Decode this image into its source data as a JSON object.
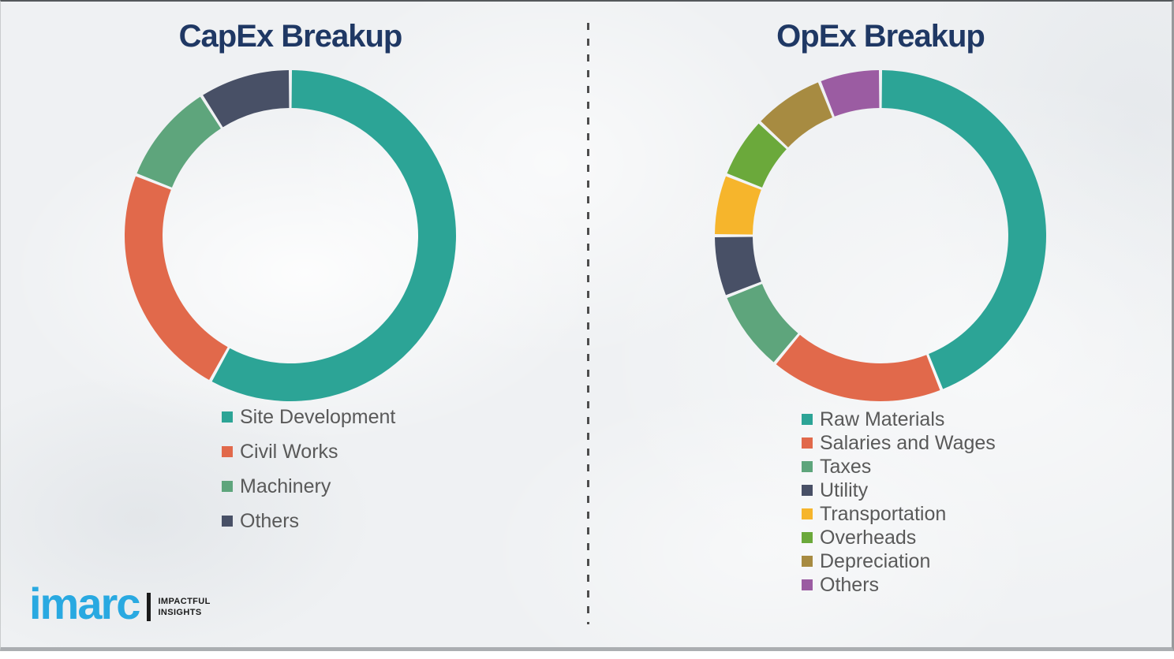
{
  "slide": {
    "background_color": "#eff1f3",
    "divider_style": "vertical-dashed",
    "divider_color": "#4d4d4d"
  },
  "titles": {
    "title_color": "#1f3864"
  },
  "legend_text_color": "#595959",
  "chart_data": [
    {
      "type": "pie",
      "donut": true,
      "title": "CapEx Breakup",
      "start_angle_deg": 0,
      "direction": "clockwise",
      "legend_position": "below-left",
      "note": "no numeric labels shown; segment shares estimated from arc angles",
      "slices": [
        {
          "label": "Site Development",
          "value": 58,
          "color": "#2CA496"
        },
        {
          "label": "Civil Works",
          "value": 23,
          "color": "#E1694B"
        },
        {
          "label": "Machinery",
          "value": 10,
          "color": "#5EA57C"
        },
        {
          "label": "Others",
          "value": 9,
          "color": "#485066"
        }
      ]
    },
    {
      "type": "pie",
      "donut": true,
      "title": "OpEx Breakup",
      "start_angle_deg": 0,
      "direction": "clockwise",
      "legend_position": "below-left",
      "note": "no numeric labels shown; segment shares estimated from arc angles",
      "slices": [
        {
          "label": "Raw Materials",
          "value": 44,
          "color": "#2CA496"
        },
        {
          "label": "Salaries and Wages",
          "value": 17,
          "color": "#E1694B"
        },
        {
          "label": "Taxes",
          "value": 8,
          "color": "#5EA57C"
        },
        {
          "label": "Utility",
          "value": 6,
          "color": "#485066"
        },
        {
          "label": "Transportation",
          "value": 6,
          "color": "#F6B52C"
        },
        {
          "label": "Overheads",
          "value": 6,
          "color": "#6BA93B"
        },
        {
          "label": "Depreciation",
          "value": 7,
          "color": "#A78B41"
        },
        {
          "label": "Others",
          "value": 6,
          "color": "#9B5CA2"
        }
      ]
    }
  ],
  "logo": {
    "brand": "imarc",
    "brand_color": "#29a9e1",
    "tagline_line1": "IMPACTFUL",
    "tagline_line2": "INSIGHTS"
  }
}
